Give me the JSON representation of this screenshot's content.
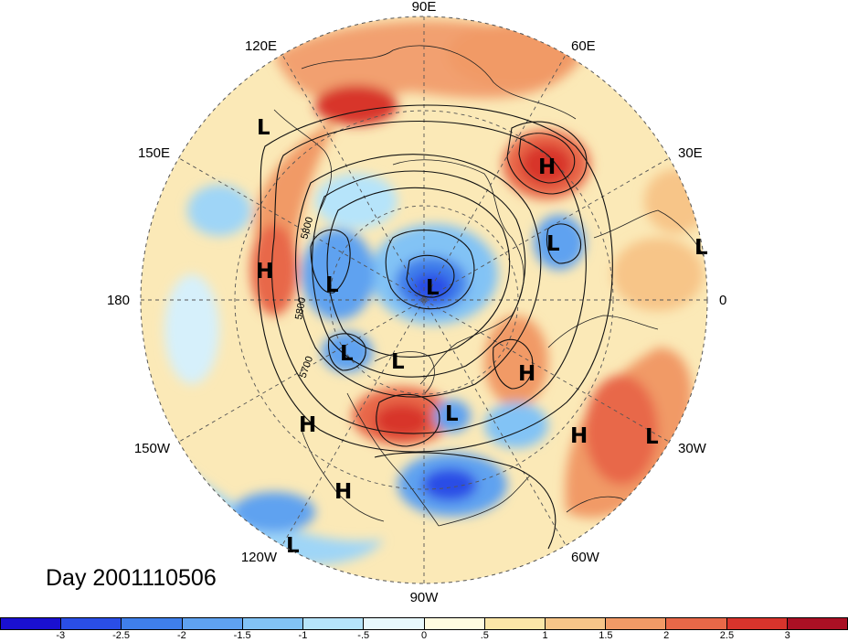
{
  "title": "Day 2001110506",
  "longitude_labels": {
    "lon_90e": "90E",
    "lon_60e": "60E",
    "lon_30e": "30E",
    "lon_0": "0",
    "lon_30w": "30W",
    "lon_60w": "60W",
    "lon_90w": "90W",
    "lon_120w": "120W",
    "lon_150w": "150W",
    "lon_180": "180",
    "lon_150e": "150E",
    "lon_120e": "120E"
  },
  "contour_labels": [
    "5800",
    "5800",
    "5700"
  ],
  "pressure_centers": [
    {
      "type": "L"
    },
    {
      "type": "H"
    },
    {
      "type": "L"
    },
    {
      "type": "L"
    },
    {
      "type": "H"
    },
    {
      "type": "L"
    },
    {
      "type": "L"
    },
    {
      "type": "L"
    },
    {
      "type": "L"
    },
    {
      "type": "L"
    },
    {
      "type": "H"
    },
    {
      "type": "L"
    },
    {
      "type": "H"
    },
    {
      "type": "L"
    },
    {
      "type": "H"
    },
    {
      "type": "H"
    },
    {
      "type": "L"
    }
  ],
  "colorbar": {
    "labels": [
      "-3",
      "-2.5",
      "-2",
      "-1.5",
      "-1",
      "-.5",
      "0",
      ".5",
      "1",
      "1.5",
      "2",
      "2.5",
      "3"
    ],
    "colors": [
      "#1a10d0",
      "#2a4ee6",
      "#3f7fea",
      "#5fa2f0",
      "#82c3f5",
      "#b6e4fa",
      "#e8f8fd",
      "#fffbe0",
      "#fbe6a8",
      "#f7c588",
      "#f19a66",
      "#e86848",
      "#d8342c",
      "#aa1024"
    ]
  }
}
